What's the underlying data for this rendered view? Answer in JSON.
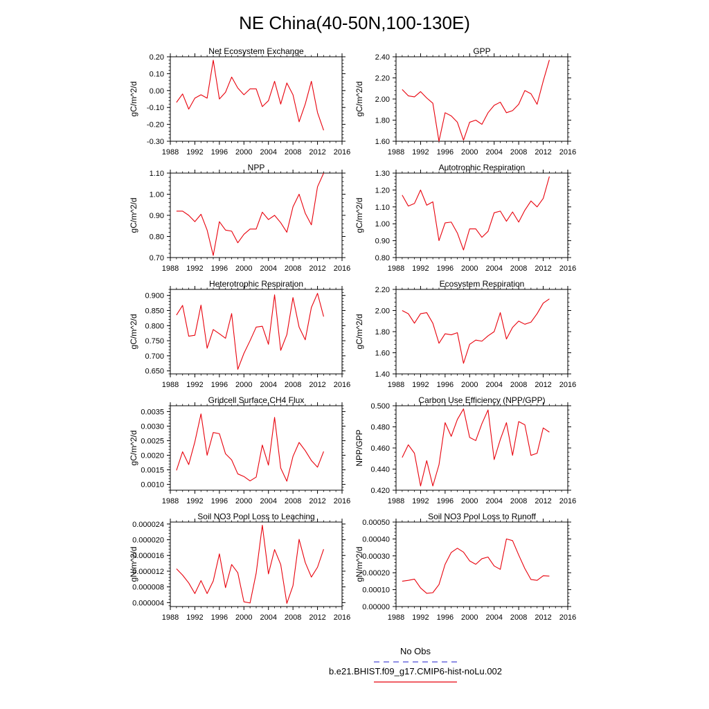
{
  "figure": {
    "title": "NE China(40-50N,100-130E)"
  },
  "legend": {
    "placement": "bottom-center",
    "entries": [
      {
        "label": "No Obs",
        "color": "#4b4bd6",
        "style": "dashed"
      },
      {
        "label": "b.e21.BHIST.f09_g17.CMIP6-hist-noLu.002",
        "color": "#e8000b",
        "style": "solid"
      }
    ]
  },
  "chart_data": [
    {
      "type": "line",
      "title": "Net Ecosystem Exchange",
      "ylabel": "gC/m^2/d",
      "xlim": [
        1988,
        2016
      ],
      "ylim": [
        -0.3,
        0.2
      ],
      "xticks": [
        "1988",
        "1992",
        "1996",
        "2000",
        "2004",
        "2008",
        "2012",
        "2016"
      ],
      "yticks": [
        "-0.30",
        "-0.20",
        "-0.10",
        "0.00",
        "0.10",
        "0.20"
      ],
      "series": [
        {
          "color": "#e8000b",
          "x": [
            1989,
            1990,
            1991,
            1992,
            1993,
            1994,
            1995,
            1996,
            1997,
            1998,
            1999,
            2000,
            2001,
            2002,
            2003,
            2004,
            2005,
            2006,
            2007,
            2008,
            2009,
            2010,
            2011,
            2012,
            2013
          ],
          "y": [
            -0.07,
            -0.02,
            -0.11,
            -0.045,
            -0.025,
            -0.045,
            0.18,
            -0.05,
            -0.01,
            0.08,
            0.015,
            -0.025,
            0.01,
            0.01,
            -0.095,
            -0.06,
            0.055,
            -0.08,
            0.045,
            -0.025,
            -0.185,
            -0.08,
            0.055,
            -0.13,
            -0.235
          ]
        }
      ]
    },
    {
      "type": "line",
      "title": "GPP",
      "ylabel": "gC/m^2/d",
      "xlim": [
        1988,
        2016
      ],
      "ylim": [
        1.6,
        2.4
      ],
      "xticks": [
        "1988",
        "1992",
        "1996",
        "2000",
        "2004",
        "2008",
        "2012",
        "2016"
      ],
      "yticks": [
        "1.60",
        "1.80",
        "2.00",
        "2.20",
        "2.40"
      ],
      "series": [
        {
          "color": "#e8000b",
          "x": [
            1989,
            1990,
            1991,
            1992,
            1993,
            1994,
            1995,
            1996,
            1997,
            1998,
            1999,
            2000,
            2001,
            2002,
            2003,
            2004,
            2005,
            2006,
            2007,
            2008,
            2009,
            2010,
            2011,
            2012,
            2013
          ],
          "y": [
            2.09,
            2.03,
            2.02,
            2.07,
            2.01,
            1.96,
            1.6,
            1.87,
            1.84,
            1.78,
            1.61,
            1.78,
            1.8,
            1.76,
            1.87,
            1.94,
            1.97,
            1.87,
            1.89,
            1.95,
            2.08,
            2.05,
            1.95,
            2.17,
            2.37
          ]
        }
      ]
    },
    {
      "type": "line",
      "title": "NPP",
      "ylabel": "gC/m^2/d",
      "xlim": [
        1988,
        2016
      ],
      "ylim": [
        0.7,
        1.1
      ],
      "xticks": [
        "1988",
        "1992",
        "1996",
        "2000",
        "2004",
        "2008",
        "2012",
        "2016"
      ],
      "yticks": [
        "0.70",
        "0.80",
        "0.90",
        "1.00",
        "1.10"
      ],
      "series": [
        {
          "color": "#e8000b",
          "x": [
            1989,
            1990,
            1991,
            1992,
            1993,
            1994,
            1995,
            1996,
            1997,
            1998,
            1999,
            2000,
            2001,
            2002,
            2003,
            2004,
            2005,
            2006,
            2007,
            2008,
            2009,
            2010,
            2011,
            2012,
            2013
          ],
          "y": [
            0.92,
            0.92,
            0.9,
            0.87,
            0.905,
            0.83,
            0.71,
            0.87,
            0.83,
            0.825,
            0.77,
            0.81,
            0.835,
            0.835,
            0.915,
            0.88,
            0.9,
            0.865,
            0.82,
            0.94,
            1.0,
            0.91,
            0.855,
            1.035,
            1.1
          ]
        }
      ]
    },
    {
      "type": "line",
      "title": "Autotrophic Respiration",
      "ylabel": "gC/m^2/d",
      "xlim": [
        1988,
        2016
      ],
      "ylim": [
        0.8,
        1.3
      ],
      "xticks": [
        "1988",
        "1992",
        "1996",
        "2000",
        "2004",
        "2008",
        "2012",
        "2016"
      ],
      "yticks": [
        "0.80",
        "0.90",
        "1.00",
        "1.10",
        "1.20",
        "1.30"
      ],
      "series": [
        {
          "color": "#e8000b",
          "x": [
            1989,
            1990,
            1991,
            1992,
            1993,
            1994,
            1995,
            1996,
            1997,
            1998,
            1999,
            2000,
            2001,
            2002,
            2003,
            2004,
            2005,
            2006,
            2007,
            2008,
            2009,
            2010,
            2011,
            2012,
            2013
          ],
          "y": [
            1.17,
            1.105,
            1.12,
            1.2,
            1.11,
            1.13,
            0.9,
            1.005,
            1.01,
            0.945,
            0.845,
            0.97,
            0.97,
            0.92,
            0.955,
            1.065,
            1.075,
            1.015,
            1.07,
            1.01,
            1.08,
            1.135,
            1.1,
            1.15,
            1.28
          ]
        }
      ]
    },
    {
      "type": "line",
      "title": "Heterotrophic Respiration",
      "ylabel": "gC/m^2/d",
      "xlim": [
        1988,
        2016
      ],
      "ylim": [
        0.64,
        0.92
      ],
      "xticks": [
        "1988",
        "1992",
        "1996",
        "2000",
        "2004",
        "2008",
        "2012",
        "2016"
      ],
      "yticks": [
        "0.650",
        "0.700",
        "0.750",
        "0.800",
        "0.850",
        "0.900"
      ],
      "series": [
        {
          "color": "#e8000b",
          "x": [
            1989,
            1990,
            1991,
            1992,
            1993,
            1994,
            1995,
            1996,
            1997,
            1998,
            1999,
            2000,
            2001,
            2002,
            2003,
            2004,
            2005,
            2006,
            2007,
            2008,
            2009,
            2010,
            2011,
            2012,
            2013
          ],
          "y": [
            0.835,
            0.867,
            0.765,
            0.768,
            0.868,
            0.725,
            0.787,
            0.773,
            0.758,
            0.84,
            0.655,
            0.708,
            0.75,
            0.795,
            0.798,
            0.738,
            0.902,
            0.718,
            0.77,
            0.893,
            0.795,
            0.753,
            0.86,
            0.907,
            0.83
          ]
        }
      ]
    },
    {
      "type": "line",
      "title": "Ecosystem Respiration",
      "ylabel": "gC/m^2/d",
      "xlim": [
        1988,
        2016
      ],
      "ylim": [
        1.4,
        2.2
      ],
      "xticks": [
        "1988",
        "1992",
        "1996",
        "2000",
        "2004",
        "2008",
        "2012",
        "2016"
      ],
      "yticks": [
        "1.40",
        "1.60",
        "1.80",
        "2.00",
        "2.20"
      ],
      "series": [
        {
          "color": "#e8000b",
          "x": [
            1989,
            1990,
            1991,
            1992,
            1993,
            1994,
            1995,
            1996,
            1997,
            1998,
            1999,
            2000,
            2001,
            2002,
            2003,
            2004,
            2005,
            2006,
            2007,
            2008,
            2009,
            2010,
            2011,
            2012,
            2013
          ],
          "y": [
            2.0,
            1.97,
            1.88,
            1.97,
            1.98,
            1.88,
            1.69,
            1.78,
            1.77,
            1.79,
            1.5,
            1.68,
            1.72,
            1.71,
            1.76,
            1.8,
            1.98,
            1.73,
            1.84,
            1.9,
            1.87,
            1.89,
            1.97,
            2.07,
            2.11
          ]
        }
      ]
    },
    {
      "type": "line",
      "title": "Gridcell Surface CH4 Flux",
      "ylabel": "gC/m^2/d",
      "xlim": [
        1988,
        2016
      ],
      "ylim": [
        0.0008,
        0.0037
      ],
      "xticks": [
        "1988",
        "1992",
        "1996",
        "2000",
        "2004",
        "2008",
        "2012",
        "2016"
      ],
      "yticks": [
        "0.0010",
        "0.0015",
        "0.0020",
        "0.0025",
        "0.0030",
        "0.0035"
      ],
      "series": [
        {
          "color": "#e8000b",
          "x": [
            1989,
            1990,
            1991,
            1992,
            1993,
            1994,
            1995,
            1996,
            1997,
            1998,
            1999,
            2000,
            2001,
            2002,
            2003,
            2004,
            2005,
            2006,
            2007,
            2008,
            2009,
            2010,
            2011,
            2012,
            2013
          ],
          "y": [
            0.00148,
            0.00212,
            0.00168,
            0.00246,
            0.00342,
            0.002,
            0.00278,
            0.00274,
            0.00205,
            0.00184,
            0.00136,
            0.00127,
            0.00112,
            0.00125,
            0.00235,
            0.00166,
            0.0033,
            0.00156,
            0.00111,
            0.00196,
            0.00244,
            0.00216,
            0.00182,
            0.00159,
            0.00213
          ]
        }
      ]
    },
    {
      "type": "line",
      "title": "Carbon Use Efficiency (NPP/GPP)",
      "ylabel": "NPP/GPP",
      "xlim": [
        1988,
        2016
      ],
      "ylim": [
        0.42,
        0.5
      ],
      "xticks": [
        "1988",
        "1992",
        "1996",
        "2000",
        "2004",
        "2008",
        "2012",
        "2016"
      ],
      "yticks": [
        "0.420",
        "0.440",
        "0.460",
        "0.480",
        "0.500"
      ],
      "series": [
        {
          "color": "#e8000b",
          "x": [
            1989,
            1990,
            1991,
            1992,
            1993,
            1994,
            1995,
            1996,
            1997,
            1998,
            1999,
            2000,
            2001,
            2002,
            2003,
            2004,
            2005,
            2006,
            2007,
            2008,
            2009,
            2010,
            2011,
            2012,
            2013
          ],
          "y": [
            0.451,
            0.463,
            0.455,
            0.424,
            0.448,
            0.424,
            0.444,
            0.484,
            0.471,
            0.487,
            0.497,
            0.47,
            0.467,
            0.483,
            0.496,
            0.449,
            0.468,
            0.484,
            0.453,
            0.485,
            0.482,
            0.453,
            0.455,
            0.479,
            0.475
          ]
        }
      ]
    },
    {
      "type": "line",
      "title": "Soil NO3 Pool Loss to Leaching",
      "ylabel": "gN/m^2/d",
      "xlim": [
        1988,
        2016
      ],
      "ylim": [
        3e-06,
        2.45e-05
      ],
      "xticks": [
        "1988",
        "1992",
        "1996",
        "2000",
        "2004",
        "2008",
        "2012",
        "2016"
      ],
      "yticks": [
        "0.000004",
        "0.000008",
        "0.000012",
        "0.000016",
        "0.000020",
        "0.000024"
      ],
      "series": [
        {
          "color": "#e8000b",
          "x": [
            1989,
            1990,
            1991,
            1992,
            1993,
            1994,
            1995,
            1996,
            1997,
            1998,
            1999,
            2000,
            2001,
            2002,
            2003,
            2004,
            2005,
            2006,
            2007,
            2008,
            2009,
            2010,
            2011,
            2012,
            2013
          ],
          "y": [
            1.26e-05,
            1.1e-05,
            9e-06,
            6.3e-06,
            9.6e-06,
            6.3e-06,
            9.5e-06,
            1.64e-05,
            7.8e-06,
            1.37e-05,
            1.16e-05,
            4.2e-06,
            3.9e-06,
            1.15e-05,
            2.37e-05,
            1.13e-05,
            1.75e-05,
            1.37e-05,
            3.8e-06,
            8.3e-06,
            2.01e-05,
            1.42e-05,
            1.05e-05,
            1.3e-05,
            1.76e-05
          ]
        }
      ]
    },
    {
      "type": "line",
      "title": "Soil NO3 Pool Loss to Runoff",
      "ylabel": "gN/m^2/d",
      "xlim": [
        1988,
        2016
      ],
      "ylim": [
        0.0,
        0.0005
      ],
      "xticks": [
        "1988",
        "1992",
        "1996",
        "2000",
        "2004",
        "2008",
        "2012",
        "2016"
      ],
      "yticks": [
        "0.00000",
        "0.00010",
        "0.00020",
        "0.00030",
        "0.00040",
        "0.00050"
      ],
      "series": [
        {
          "color": "#e8000b",
          "x": [
            1989,
            1990,
            1991,
            1992,
            1993,
            1994,
            1995,
            1996,
            1997,
            1998,
            1999,
            2000,
            2001,
            2002,
            2003,
            2004,
            2005,
            2006,
            2007,
            2008,
            2009,
            2010,
            2011,
            2012,
            2013
          ],
          "y": [
            0.00015,
            0.000155,
            0.000162,
            0.00011,
            7.8e-05,
            8.2e-05,
            0.00013,
            0.00025,
            0.00032,
            0.000345,
            0.000322,
            0.00027,
            0.00025,
            0.000283,
            0.000293,
            0.00024,
            0.00022,
            0.0004,
            0.00039,
            0.000305,
            0.000225,
            0.00016,
            0.000155,
            0.000182,
            0.00018
          ]
        }
      ]
    }
  ]
}
